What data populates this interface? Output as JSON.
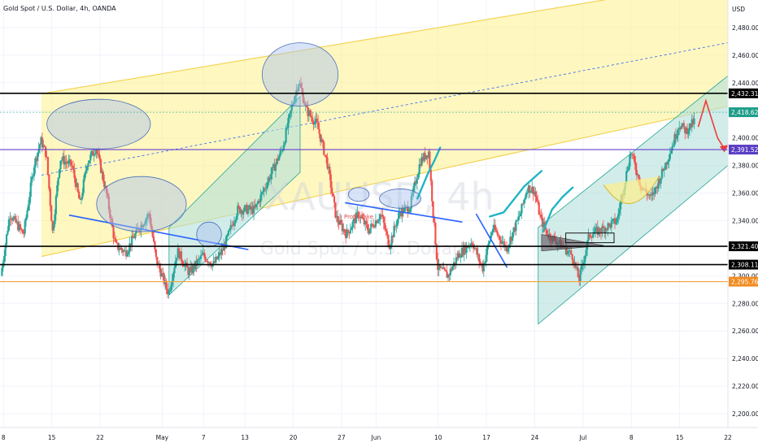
{
  "header": {
    "title": "Gold Spot / U.S. Dollar, 4h, OANDA"
  },
  "watermark": {
    "symbol": "XAUUSD, 4h",
    "name": "Gold Spot / U.S. Dollar"
  },
  "annotation": {
    "label": "Profit Take"
  },
  "colors": {
    "up": "#26a69a",
    "down": "#ef5350",
    "channel_fill": "#fdf08a",
    "channel_line": "#f2cd41",
    "green_channel": "#b2dfdb",
    "resistance": "#000000",
    "purple": "#6a3fd0",
    "orange": "#f5a23a",
    "trend_blue": "#2962ff",
    "curve_cyan": "#1fb5c2",
    "circle": "#90a8d8",
    "arrow": "#ef3b3b"
  },
  "chart_data": {
    "type": "candlestick",
    "title": "Gold Spot / U.S. Dollar, 4h, OANDA",
    "y_unit": "USD",
    "ylim": [
      2190,
      2500
    ],
    "y_ticks": [
      "2,480.000",
      "2,460.000",
      "2,440.000",
      "2,420.000",
      "2,400.000",
      "2,380.000",
      "2,360.000",
      "2,340.000",
      "2,300.000",
      "2,280.000",
      "2,260.000",
      "2,240.000",
      "2,220.000",
      "2,200.000"
    ],
    "x_ticks": [
      {
        "label": "8",
        "day": 8
      },
      {
        "label": "15",
        "day": 15
      },
      {
        "label": "22",
        "day": 22
      },
      {
        "label": "May",
        "day": 31
      },
      {
        "label": "7",
        "day": 37
      },
      {
        "label": "13",
        "day": 43
      },
      {
        "label": "20",
        "day": 50
      },
      {
        "label": "27",
        "day": 57
      },
      {
        "label": "Jun",
        "day": 62
      },
      {
        "label": "10",
        "day": 71
      },
      {
        "label": "17",
        "day": 78
      },
      {
        "label": "24",
        "day": 85
      },
      {
        "label": "Jul",
        "day": 92
      },
      {
        "label": "8",
        "day": 99
      },
      {
        "label": "15",
        "day": 106
      },
      {
        "label": "22",
        "day": 113
      }
    ],
    "day_range": [
      7.5,
      113
    ],
    "price_path": [
      [
        7.7,
        2300
      ],
      [
        9,
        2345
      ],
      [
        11,
        2330
      ],
      [
        12.5,
        2380
      ],
      [
        13.5,
        2398
      ],
      [
        14.3,
        2388
      ],
      [
        15.2,
        2332
      ],
      [
        16.3,
        2385
      ],
      [
        18,
        2380
      ],
      [
        19.2,
        2352
      ],
      [
        20.2,
        2382
      ],
      [
        21.5,
        2393
      ],
      [
        23,
        2360
      ],
      [
        24.3,
        2322
      ],
      [
        25.8,
        2317
      ],
      [
        27.5,
        2333
      ],
      [
        29.2,
        2345
      ],
      [
        30.2,
        2312
      ],
      [
        31,
        2301
      ],
      [
        32,
        2287
      ],
      [
        33.3,
        2318
      ],
      [
        35,
        2302
      ],
      [
        37,
        2315
      ],
      [
        38.5,
        2308
      ],
      [
        40,
        2320
      ],
      [
        42,
        2348
      ],
      [
        44.5,
        2348
      ],
      [
        46.5,
        2370
      ],
      [
        48.5,
        2392
      ],
      [
        50,
        2425
      ],
      [
        50.9,
        2441
      ],
      [
        52,
        2420
      ],
      [
        53.5,
        2410
      ],
      [
        55,
        2382
      ],
      [
        56.3,
        2342
      ],
      [
        57.8,
        2330
      ],
      [
        59.5,
        2345
      ],
      [
        61,
        2333
      ],
      [
        62.8,
        2345
      ],
      [
        64,
        2322
      ],
      [
        65.5,
        2346
      ],
      [
        67,
        2350
      ],
      [
        68.5,
        2383
      ],
      [
        69.7,
        2390
      ],
      [
        70.3,
        2350
      ],
      [
        71,
        2306
      ],
      [
        72.5,
        2300
      ],
      [
        74,
        2315
      ],
      [
        76,
        2325
      ],
      [
        77.5,
        2305
      ],
      [
        79,
        2335
      ],
      [
        81,
        2320
      ],
      [
        83,
        2345
      ],
      [
        84,
        2364
      ],
      [
        85,
        2362
      ],
      [
        86,
        2340
      ],
      [
        87,
        2330
      ],
      [
        89,
        2322
      ],
      [
        90.5,
        2315
      ],
      [
        91.5,
        2297
      ],
      [
        93,
        2330
      ],
      [
        95,
        2334
      ],
      [
        97,
        2340
      ],
      [
        99,
        2390
      ],
      [
        100.5,
        2365
      ],
      [
        102,
        2356
      ],
      [
        103.5,
        2374
      ],
      [
        105,
        2394
      ],
      [
        106,
        2410
      ],
      [
        107,
        2405
      ],
      [
        108.2,
        2412
      ]
    ],
    "horizontal_levels": [
      {
        "price": 2432.311,
        "label": "2,432.311",
        "role": "resistance"
      },
      {
        "price": 2418.625,
        "label": "2,418.625",
        "role": "last-price"
      },
      {
        "price": 2391.528,
        "label": "2,391.528",
        "role": "purple-level"
      },
      {
        "price": 2321.402,
        "label": "2,321.402",
        "role": "support"
      },
      {
        "price": 2308.114,
        "label": "2,308.114",
        "role": "support"
      },
      {
        "price": 2295.762,
        "label": "2,295.762",
        "role": "orange-level"
      }
    ],
    "yellow_channel": {
      "top": [
        [
          13.5,
          2432
        ],
        [
          113,
          2515
        ]
      ],
      "bottom": [
        [
          13.5,
          2314
        ],
        [
          113,
          2423
        ]
      ],
      "mid": [
        [
          13.5,
          2373
        ],
        [
          113,
          2469
        ]
      ]
    },
    "green_channels": [
      {
        "poly": [
          [
            32,
            2286
          ],
          [
            51,
            2375
          ],
          [
            51,
            2430
          ],
          [
            32,
            2335
          ]
        ]
      },
      {
        "poly": [
          [
            85.5,
            2265
          ],
          [
            113,
            2380
          ],
          [
            113,
            2445
          ],
          [
            85.5,
            2335
          ]
        ]
      }
    ],
    "trend_lines": [
      {
        "from": [
          17.5,
          2344
        ],
        "to": [
          43.5,
          2319
        ]
      },
      {
        "from": [
          57.5,
          2353
        ],
        "to": [
          74.5,
          2339
        ]
      },
      {
        "from": [
          76.5,
          2345
        ],
        "to": [
          81,
          2306
        ]
      }
    ],
    "circles": [
      {
        "c": [
          21.8,
          2410
        ],
        "rx": 7.5,
        "ry": 18
      },
      {
        "c": [
          28,
          2352
        ],
        "rx": 6.5,
        "ry": 20
      },
      {
        "c": [
          37.8,
          2330
        ],
        "rx": 1.8,
        "ry": 9
      },
      {
        "c": [
          51,
          2446
        ],
        "rx": 5.5,
        "ry": 23
      },
      {
        "c": [
          59.5,
          2359
        ],
        "rx": 1.5,
        "ry": 5
      },
      {
        "c": [
          65.5,
          2356
        ],
        "rx": 3,
        "ry": 7
      }
    ],
    "cyan_curves": [
      {
        "pts": [
          [
            68,
            2356
          ],
          [
            69.5,
            2374
          ],
          [
            70.5,
            2384
          ],
          [
            71.3,
            2393
          ]
        ]
      },
      {
        "pts": [
          [
            78.5,
            2343
          ],
          [
            80.5,
            2346
          ],
          [
            83.5,
            2365
          ],
          [
            86,
            2376
          ]
        ]
      },
      {
        "pts": [
          [
            86.2,
            2332
          ],
          [
            87.5,
            2348
          ],
          [
            89,
            2357
          ],
          [
            90.5,
            2364
          ]
        ]
      }
    ],
    "arrow_path": [
      [
        108.7,
        2408
      ],
      [
        109.8,
        2427
      ],
      [
        111.5,
        2400
      ],
      [
        112.5,
        2392
      ]
    ]
  }
}
